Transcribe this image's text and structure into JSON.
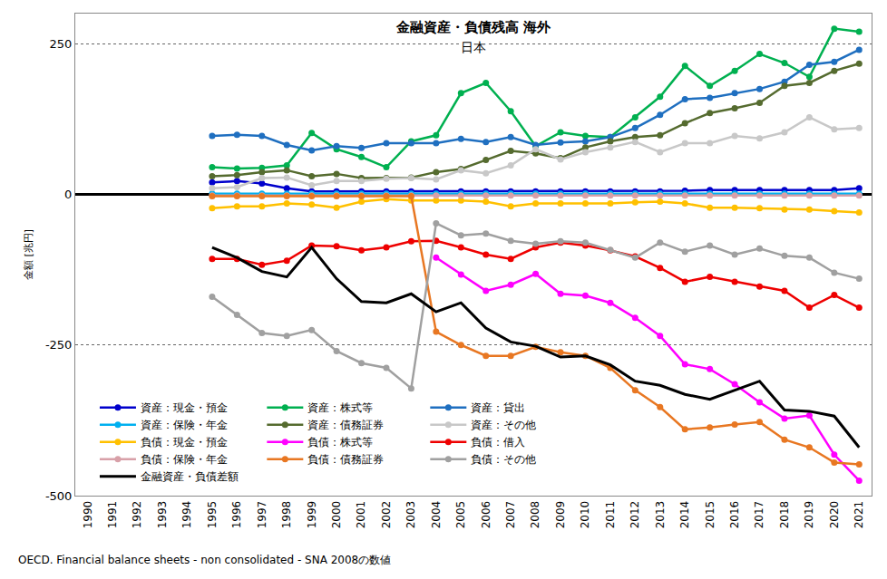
{
  "chart_data": {
    "type": "line",
    "title": "金融資産・負債残高 海外",
    "subtitle": "日本",
    "y_label": "金額 [兆円]",
    "source": "OECD. Financial balance sheets - non consolidated - SNA 2008の数値",
    "x": [
      1995,
      1996,
      1997,
      1998,
      1999,
      2000,
      2001,
      2002,
      2003,
      2004,
      2005,
      2006,
      2007,
      2008,
      2009,
      2010,
      2011,
      2012,
      2013,
      2014,
      2015,
      2016,
      2017,
      2018,
      2019,
      2020,
      2021
    ],
    "xlim": [
      1989.5,
      2021.5
    ],
    "xticks": [
      1990,
      1991,
      1992,
      1993,
      1994,
      1995,
      1996,
      1997,
      1998,
      1999,
      2000,
      2001,
      2002,
      2003,
      2004,
      2005,
      2006,
      2007,
      2008,
      2009,
      2010,
      2011,
      2012,
      2013,
      2014,
      2015,
      2016,
      2017,
      2018,
      2019,
      2020,
      2021
    ],
    "ylim": [
      -500,
      300
    ],
    "yticks": [
      -500,
      -250,
      0,
      250
    ],
    "grid": true,
    "legend": "lower left",
    "marker": "circle",
    "series": [
      {
        "name": "資産：現金・預金",
        "color": "#0000cc",
        "values": [
          20,
          22,
          18,
          10,
          5,
          5,
          5,
          5,
          5,
          5,
          5,
          5,
          5,
          5,
          5,
          5,
          5,
          5,
          5,
          6,
          7,
          7,
          7,
          7,
          7,
          7,
          10
        ]
      },
      {
        "name": "資産：株式等",
        "color": "#00b050",
        "values": [
          45,
          43,
          44,
          48,
          102,
          75,
          62,
          45,
          88,
          98,
          168,
          185,
          138,
          80,
          103,
          97,
          95,
          128,
          162,
          213,
          180,
          205,
          233,
          218,
          195,
          275,
          270
        ]
      },
      {
        "name": "資産：貸出",
        "color": "#1f6fc0",
        "values": [
          97,
          99,
          97,
          82,
          73,
          80,
          77,
          85,
          85,
          85,
          92,
          87,
          95,
          82,
          86,
          88,
          95,
          110,
          132,
          158,
          160,
          168,
          175,
          187,
          215,
          220,
          240
        ]
      },
      {
        "name": "資産：保険・年金",
        "color": "#00b0f0",
        "values": [
          1,
          1,
          1,
          1,
          1,
          1,
          1,
          1,
          1,
          1,
          1,
          1,
          1,
          1,
          1,
          1,
          1,
          1,
          1,
          1,
          1,
          1,
          1,
          1,
          1,
          1,
          1
        ]
      },
      {
        "name": "資産：債務証券",
        "color": "#556b2f",
        "values": [
          30,
          32,
          37,
          40,
          30,
          34,
          27,
          27,
          28,
          37,
          42,
          57,
          72,
          68,
          60,
          78,
          88,
          95,
          98,
          118,
          135,
          143,
          152,
          180,
          185,
          205,
          217
        ]
      },
      {
        "name": "資産：その他",
        "color": "#c8c8c8",
        "values": [
          10,
          12,
          27,
          28,
          15,
          22,
          22,
          26,
          27,
          25,
          40,
          35,
          48,
          75,
          58,
          70,
          78,
          87,
          70,
          85,
          85,
          97,
          93,
          103,
          128,
          108,
          110
        ]
      },
      {
        "name": "負債：現金・預金",
        "color": "#ffc000",
        "values": [
          -23,
          -20,
          -20,
          -15,
          -17,
          -22,
          -12,
          -8,
          -10,
          -10,
          -10,
          -12,
          -20,
          -15,
          -15,
          -15,
          -15,
          -13,
          -12,
          -15,
          -22,
          -22,
          -23,
          -25,
          -25,
          -28,
          -30
        ]
      },
      {
        "name": "負債：株式等",
        "color": "#ff00ff",
        "values": [
          null,
          null,
          null,
          null,
          null,
          null,
          null,
          null,
          null,
          -105,
          -133,
          -160,
          -150,
          -132,
          -165,
          -168,
          -180,
          -205,
          -235,
          -282,
          -290,
          -315,
          -345,
          -372,
          -367,
          -432,
          -475
        ]
      },
      {
        "name": "負債：借入",
        "color": "#ee0000",
        "values": [
          -107,
          -107,
          -117,
          -110,
          -85,
          -86,
          -93,
          -88,
          -78,
          -77,
          -88,
          -100,
          -107,
          -88,
          -80,
          -85,
          -93,
          -103,
          -122,
          -145,
          -137,
          -145,
          -153,
          -160,
          -188,
          -167,
          -188
        ]
      },
      {
        "name": "負債：保険・年金",
        "color": "#d8a0a8",
        "values": [
          -2,
          -2,
          -2,
          -2,
          -2,
          -2,
          -2,
          -2,
          -2,
          -2,
          -2,
          -2,
          -2,
          -2,
          -2,
          -2,
          -2,
          -2,
          -2,
          -2,
          -2,
          -2,
          -2,
          -2,
          -2,
          -2,
          -2
        ]
      },
      {
        "name": "負債：債務証券",
        "color": "#e87722",
        "values": [
          -3,
          -3,
          -3,
          -3,
          -3,
          -3,
          -3,
          -3,
          -3,
          -228,
          -250,
          -268,
          -268,
          -253,
          -262,
          -268,
          -288,
          -325,
          -353,
          -390,
          -387,
          -382,
          -378,
          -407,
          -420,
          -445,
          -448
        ]
      },
      {
        "name": "負債：その他",
        "color": "#a0a0a0",
        "values": [
          -170,
          -200,
          -230,
          -235,
          -225,
          -260,
          -280,
          -288,
          -322,
          -48,
          -68,
          -65,
          -77,
          -82,
          -78,
          -80,
          -92,
          -105,
          -80,
          -95,
          -85,
          -100,
          -90,
          -102,
          -105,
          -130,
          -140
        ]
      },
      {
        "name": "金融資産・負債差額",
        "color": "#000000",
        "marker": "none",
        "values": [
          -88,
          -105,
          -128,
          -137,
          -88,
          -140,
          -178,
          -180,
          -165,
          -195,
          -180,
          -222,
          -245,
          -252,
          -270,
          -268,
          -283,
          -310,
          -317,
          -332,
          -340,
          -325,
          -310,
          -358,
          -360,
          -368,
          -420
        ]
      }
    ]
  }
}
